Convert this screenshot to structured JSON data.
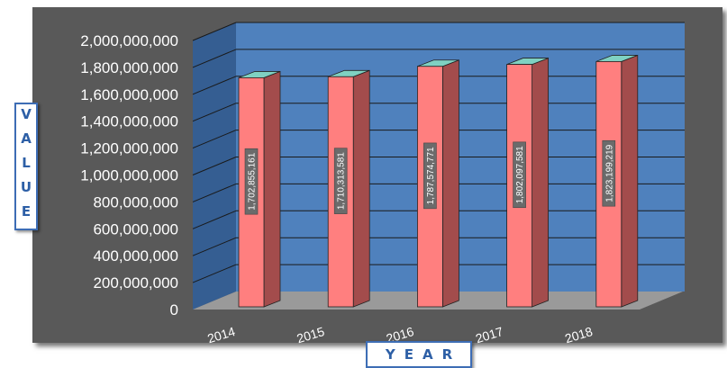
{
  "chart_data": {
    "type": "bar",
    "title": "",
    "xlabel": "YEAR",
    "ylabel": "VALUE",
    "categories": [
      "2014",
      "2015",
      "2016",
      "2017",
      "2018"
    ],
    "values": [
      1702855161,
      1710313581,
      1787574771,
      1802097581,
      1823199219
    ],
    "value_labels": [
      "1,702,855,161",
      "1,710,313,581",
      "1,787,574,771",
      "1,802,097,581",
      "1,823,199,219"
    ],
    "ylim": [
      0,
      2000000000
    ],
    "y_ticks": [
      0,
      200000000,
      400000000,
      600000000,
      800000000,
      1000000000,
      1200000000,
      1400000000,
      1600000000,
      1800000000,
      2000000000
    ],
    "y_tick_labels": [
      "0",
      "200,000,000",
      "400,000,000",
      "600,000,000",
      "800,000,000",
      "1,000,000,000",
      "1,200,000,000",
      "1,400,000,000",
      "1,600,000,000",
      "1,800,000,000",
      "2,000,000,000"
    ],
    "grid": true,
    "legend": "none",
    "three_d": true,
    "colors": {
      "bar_front": "#ff7f7f",
      "bar_side": "#a34c4c",
      "bar_top": "#7fd1c2",
      "back_wall": "#4f81bd",
      "side_wall": "#355e92",
      "floor": "#9a9a9a",
      "frame": "#595959",
      "gridline": "#1a1a1a",
      "axis_title_text": "#2d5fa6"
    }
  }
}
